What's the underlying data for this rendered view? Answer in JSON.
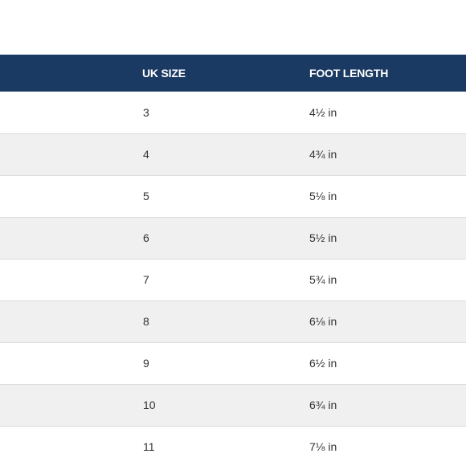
{
  "colors": {
    "header_bg": "#1b3a63",
    "header_text": "#ffffff",
    "row_alt_bg": "#f0f0f0",
    "row_bg": "#ffffff",
    "row_border": "#dcdcdc",
    "cell_text": "#333333"
  },
  "table": {
    "headers": [
      "",
      "UK SIZE",
      "FOOT LENGTH"
    ],
    "rows": [
      {
        "label": "",
        "uk_size": "3",
        "foot_length": "4½ in"
      },
      {
        "label": "",
        "uk_size": "4",
        "foot_length": "4¾ in"
      },
      {
        "label": "",
        "uk_size": "5",
        "foot_length": "5⅛ in"
      },
      {
        "label": "",
        "uk_size": "6",
        "foot_length": "5½ in"
      },
      {
        "label": "",
        "uk_size": "7",
        "foot_length": "5¾ in"
      },
      {
        "label": "",
        "uk_size": "8",
        "foot_length": "6⅛ in"
      },
      {
        "label": "",
        "uk_size": "9",
        "foot_length": "6½ in"
      },
      {
        "label": "",
        "uk_size": "10",
        "foot_length": "6¾ in"
      },
      {
        "label": "",
        "uk_size": "11",
        "foot_length": "7⅛ in"
      }
    ]
  }
}
